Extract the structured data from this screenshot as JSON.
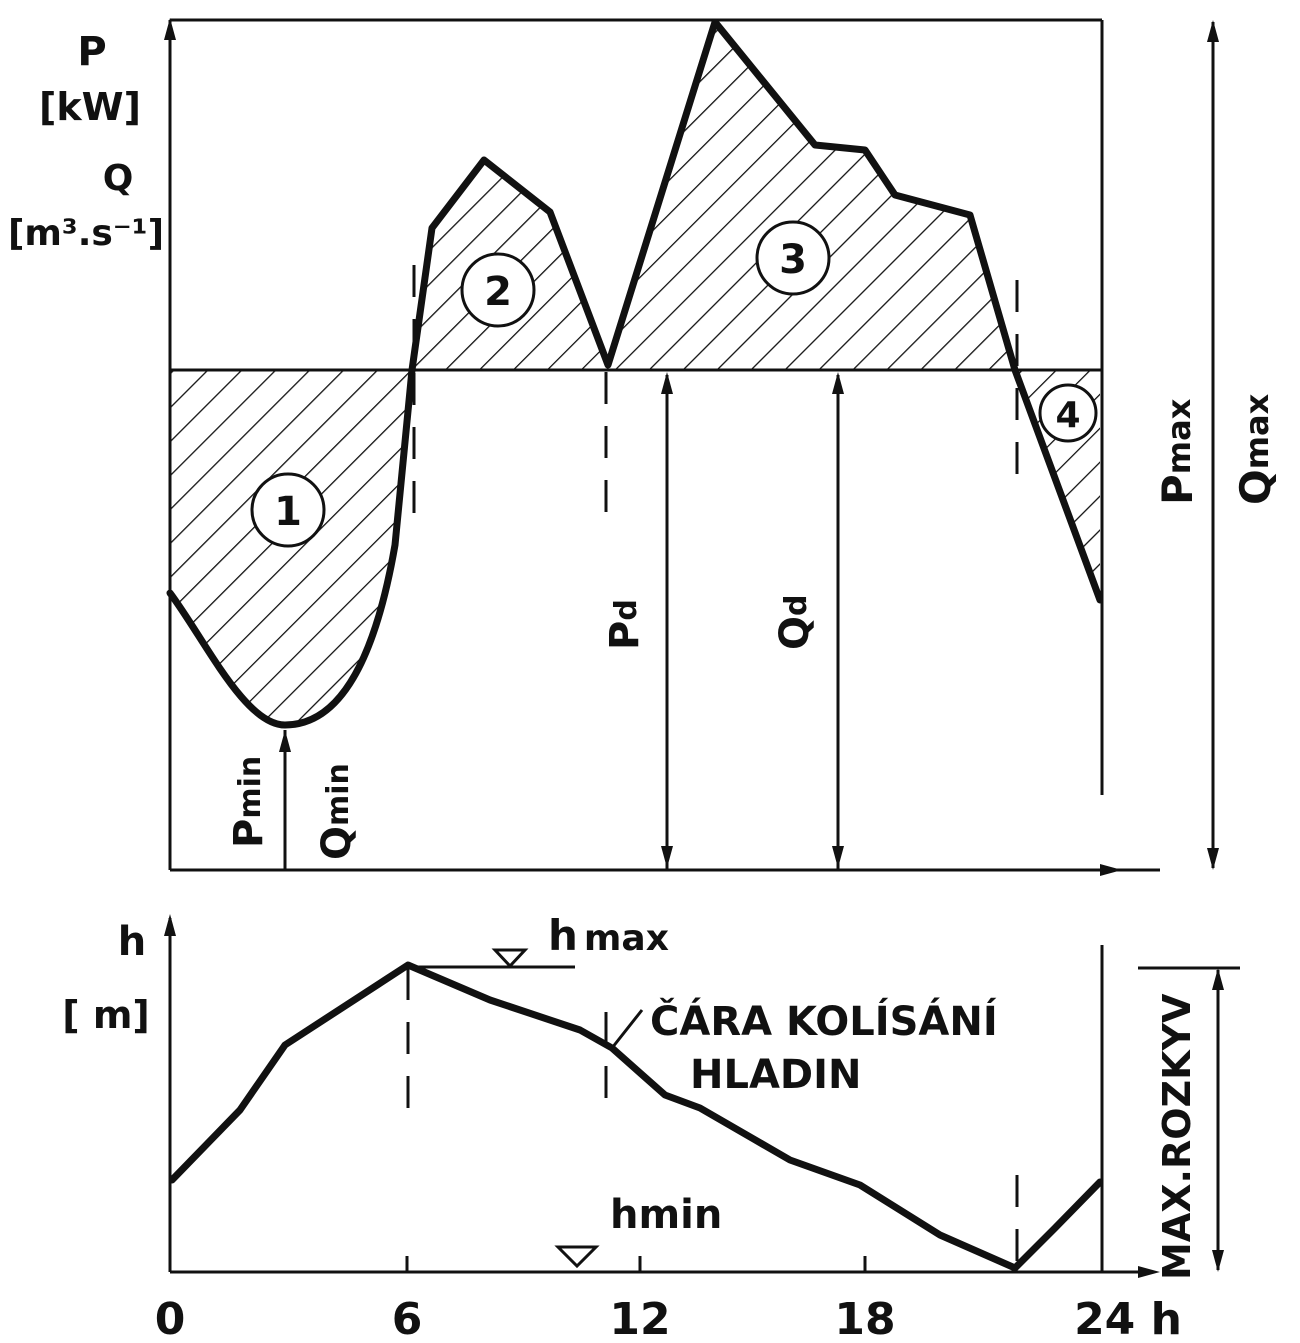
{
  "upper": {
    "y_axis_label_1": "P",
    "y_axis_unit_1": "[kW]",
    "y_axis_label_2": "Q",
    "y_axis_unit_2": "[m³.s⁻¹]",
    "area_labels": [
      "1",
      "2",
      "3",
      "4"
    ],
    "pmin": "P",
    "pmin_sub": "min",
    "qmin": "Q",
    "qmin_sub": "min",
    "pd": "P",
    "pd_sub": "d",
    "qd": "Q",
    "qd_sub": "d",
    "pmax": "P",
    "pmax_sub": "max",
    "qmax": "Q",
    "qmax_sub": "max"
  },
  "lower": {
    "y_axis_label": "h",
    "y_axis_unit": "[ m]",
    "hmax_label": "h",
    "hmax_sub": "max",
    "hmin_label": "hmin",
    "curve_label_line1": "ČÁRA KOLÍSÁNÍ",
    "curve_label_line2": "HLADIN",
    "range_label": "MAX.ROZKYV"
  },
  "x_ticks": [
    "0",
    "6",
    "12",
    "18",
    "24 h"
  ],
  "chart_data": {
    "type": "line",
    "series": [
      {
        "x": [
          0,
          1,
          2,
          3,
          4,
          5,
          5.6,
          6,
          6.5,
          8,
          9.8,
          10.6,
          11.3,
          14,
          16.2,
          17.5,
          18.5,
          20.4,
          22.5,
          24
        ],
        "y": [
          0.55,
          0.34,
          0.23,
          0.16,
          0.17,
          0.32,
          0.58,
          0.94,
          1.22,
          1.44,
          1.32,
          1.14,
          0.99,
          1.69,
          1.44,
          1.42,
          1.31,
          1.23,
          0.98,
          0.55
        ]
      },
      {
        "x": [
          0,
          2,
          3,
          6,
          9,
          11,
          13,
          18,
          20,
          22,
          24
        ],
        "y": [
          0.3,
          0.65,
          0.78,
          1.0,
          0.9,
          0.82,
          0.68,
          0.38,
          0.18,
          0.0,
          0.3
        ]
      }
    ],
    "xlim": [
      0,
      24
    ],
    "xticks": [
      0,
      6,
      12,
      18,
      24
    ]
  }
}
